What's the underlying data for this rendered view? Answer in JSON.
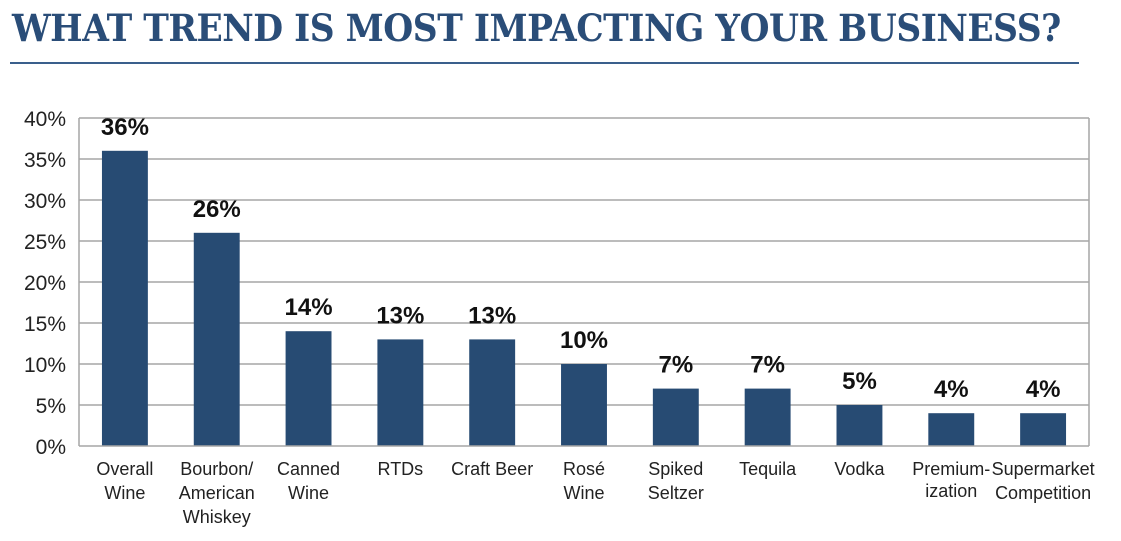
{
  "colors": {
    "bar": "#274b73",
    "title": "#2a4d78",
    "grid": "#a6a6a6"
  },
  "chart_data": {
    "type": "bar",
    "title": "WHAT TREND IS MOST IMPACTING YOUR BUSINESS?",
    "xlabel": "",
    "ylabel": "",
    "ylim": [
      0,
      40
    ],
    "grid": true,
    "yticks": [
      "0%",
      "5%",
      "10%",
      "15%",
      "20%",
      "25%",
      "30%",
      "35%",
      "40%"
    ],
    "categories": [
      [
        "Overall",
        "Wine"
      ],
      [
        "Bourbon/",
        "American",
        "Whiskey"
      ],
      [
        "Canned",
        "Wine"
      ],
      [
        "RTDs"
      ],
      [
        "Craft Beer"
      ],
      [
        "Rosé",
        "Wine"
      ],
      [
        "Spiked",
        "Seltzer"
      ],
      [
        "Tequila"
      ],
      [
        "Vodka"
      ],
      [
        "Premium-",
        "ization"
      ],
      [
        "Supermarket",
        "Competition"
      ]
    ],
    "values": [
      36,
      26,
      14,
      13,
      13,
      10,
      7,
      7,
      5,
      4,
      4
    ],
    "data_labels": [
      "36%",
      "26%",
      "14%",
      "13%",
      "13%",
      "10%",
      "7%",
      "7%",
      "5%",
      "4%",
      "4%"
    ]
  }
}
